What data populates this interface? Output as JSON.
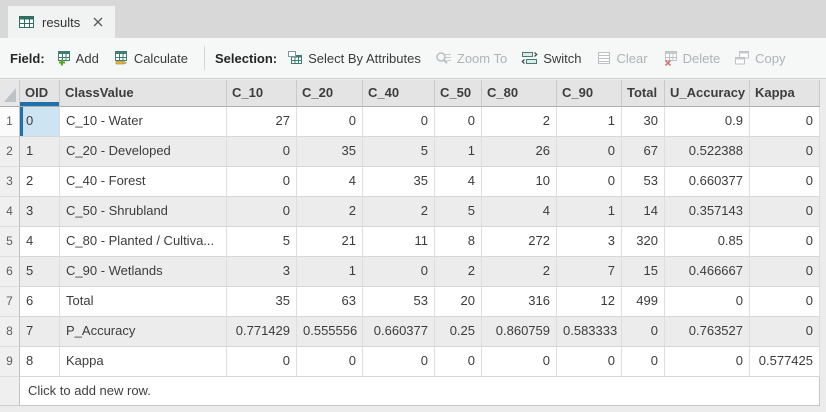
{
  "window": {
    "tab_title": "results"
  },
  "toolbar": {
    "field_label": "Field:",
    "add_label": "Add",
    "calculate_label": "Calculate",
    "selection_label": "Selection:",
    "select_by_attributes_label": "Select By Attributes",
    "zoom_to_label": "Zoom To",
    "switch_label": "Switch",
    "clear_label": "Clear",
    "delete_label": "Delete",
    "copy_label": "Copy"
  },
  "table": {
    "columns": [
      "OID",
      "ClassValue",
      "C_10",
      "C_20",
      "C_40",
      "C_50",
      "C_80",
      "C_90",
      "Total",
      "U_Accuracy",
      "Kappa"
    ],
    "rows": [
      {
        "row_number": "1",
        "oid": "0",
        "class_value": "C_10 - Water",
        "values": [
          "27",
          "0",
          "0",
          "0",
          "2",
          "1",
          "30",
          "0.9",
          "0"
        ],
        "oid_cell_selected": true
      },
      {
        "row_number": "2",
        "oid": "1",
        "class_value": "C_20 - Developed",
        "values": [
          "0",
          "35",
          "5",
          "1",
          "26",
          "0",
          "67",
          "0.522388",
          "0"
        ]
      },
      {
        "row_number": "3",
        "oid": "2",
        "class_value": "C_40 - Forest",
        "values": [
          "0",
          "4",
          "35",
          "4",
          "10",
          "0",
          "53",
          "0.660377",
          "0"
        ]
      },
      {
        "row_number": "4",
        "oid": "3",
        "class_value": "C_50 - Shrubland",
        "values": [
          "0",
          "2",
          "2",
          "5",
          "4",
          "1",
          "14",
          "0.357143",
          "0"
        ]
      },
      {
        "row_number": "5",
        "oid": "4",
        "class_value": "C_80 - Planted / Cultiva...",
        "values": [
          "5",
          "21",
          "11",
          "8",
          "272",
          "3",
          "320",
          "0.85",
          "0"
        ]
      },
      {
        "row_number": "6",
        "oid": "5",
        "class_value": "C_90 - Wetlands",
        "values": [
          "3",
          "1",
          "0",
          "2",
          "2",
          "7",
          "15",
          "0.466667",
          "0"
        ]
      },
      {
        "row_number": "7",
        "oid": "6",
        "class_value": "Total",
        "values": [
          "35",
          "63",
          "53",
          "20",
          "316",
          "12",
          "499",
          "0",
          "0"
        ]
      },
      {
        "row_number": "8",
        "oid": "7",
        "class_value": "P_Accuracy",
        "values": [
          "0.771429",
          "0.555556",
          "0.660377",
          "0.25",
          "0.860759",
          "0.583333",
          "0",
          "0.763527",
          "0"
        ]
      },
      {
        "row_number": "9",
        "oid": "8",
        "class_value": "Kappa",
        "values": [
          "0",
          "0",
          "0",
          "0",
          "0",
          "0",
          "0",
          "0",
          "0.577425"
        ]
      }
    ],
    "add_row_text": "Click to add new row."
  },
  "colors": {
    "accent_blue": "#1f70ab",
    "selected_cell_bg": "#cde4f2",
    "header_bg": "#e4e4e4",
    "alt_row_bg": "#ececec",
    "disabled_text": "#aeb3b6",
    "icon_teal": "#3f7e71",
    "icon_green": "#58a618",
    "icon_red": "#cf7a72"
  }
}
